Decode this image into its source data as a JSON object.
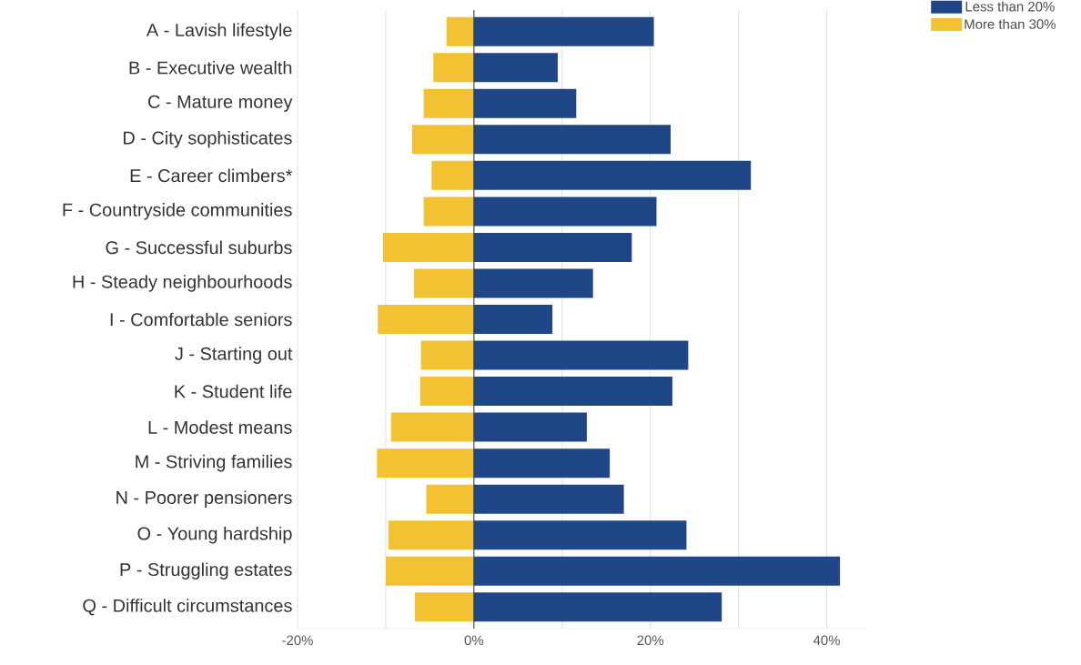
{
  "chart_data": {
    "type": "bar",
    "orientation": "horizontal",
    "categories": [
      "A - Lavish lifestyle",
      "B - Executive wealth",
      "C - Mature money",
      "D - City sophisticates",
      "E - Career climbers*",
      "F - Countryside communities",
      "G - Successful suburbs",
      "H - Steady neighbourhoods",
      "I - Comfortable seniors",
      "J - Starting out",
      "K - Student life",
      "L - Modest means",
      "M - Striving families",
      "N - Poorer pensioners",
      "O - Young hardship",
      "P - Struggling estates",
      "Q - Difficult circumstances"
    ],
    "series": [
      {
        "name": "Less than 20%",
        "color": "#1f4788",
        "values": [
          20.4,
          9.5,
          11.6,
          22.3,
          31.4,
          20.7,
          17.9,
          13.5,
          8.9,
          24.3,
          22.5,
          12.8,
          15.4,
          17.0,
          24.1,
          41.5,
          28.1
        ]
      },
      {
        "name": "More than 30%",
        "color": "#f2c232",
        "values": [
          -3.1,
          -4.6,
          -5.7,
          -7.0,
          -4.8,
          -5.7,
          -10.3,
          -6.8,
          -10.9,
          -6.0,
          -6.1,
          -9.4,
          -11.0,
          -5.4,
          -9.7,
          -10.0,
          -6.7
        ]
      }
    ],
    "xlim": [
      -20,
      45
    ],
    "xticks": [
      {
        "value": -20,
        "label": "-20%"
      },
      {
        "value": -10,
        "label": null
      },
      {
        "value": 0,
        "label": "0%"
      },
      {
        "value": 10,
        "label": null
      },
      {
        "value": 20,
        "label": "20%"
      },
      {
        "value": 30,
        "label": null
      },
      {
        "value": 40,
        "label": "40%"
      }
    ],
    "ref_lines": [
      {
        "axis": "x",
        "value": 0,
        "color": "#333333"
      }
    ],
    "grid": "x",
    "legend": "top right",
    "stacked": true
  }
}
